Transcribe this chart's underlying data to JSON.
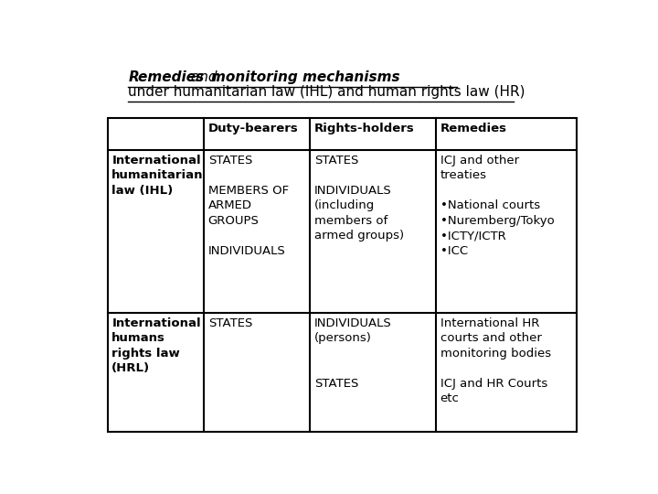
{
  "title_line1_part1": "Remedies",
  "title_line1_part2": " and ",
  "title_line1_part3": "monitoring mechanisms",
  "title_line2": "under humanitarian law (IHL) and human rights law (HR)",
  "headers": [
    "",
    "Duty-bearers",
    "Rights-holders",
    "Remedies"
  ],
  "row1_col0": "International\nhumanitarian\nlaw (IHL)",
  "row1_col1": "STATES\n\nMEMBERS OF\nARMED\nGROUPS\n\nINDIVIDUALS",
  "row1_col2": "STATES\n\nINDIVIDUALS\n(including\nmembers of\narmed groups)",
  "row1_col3": "ICJ and other\ntreaties\n\n•National courts\n•Nuremberg/Tokyo\n•ICTY/ICTR\n•ICC",
  "row2_col0": "International\nhumans\nrights law\n(HRL)",
  "row2_col1": "STATES",
  "row2_col2": "INDIVIDUALS\n(persons)\n\n\nSTATES",
  "row2_col3": "International HR\ncourts and other\nmonitoring bodies\n\nICJ and HR Courts\netc",
  "bg_color": "#ffffff",
  "text_color": "#000000",
  "grid_color": "#000000"
}
